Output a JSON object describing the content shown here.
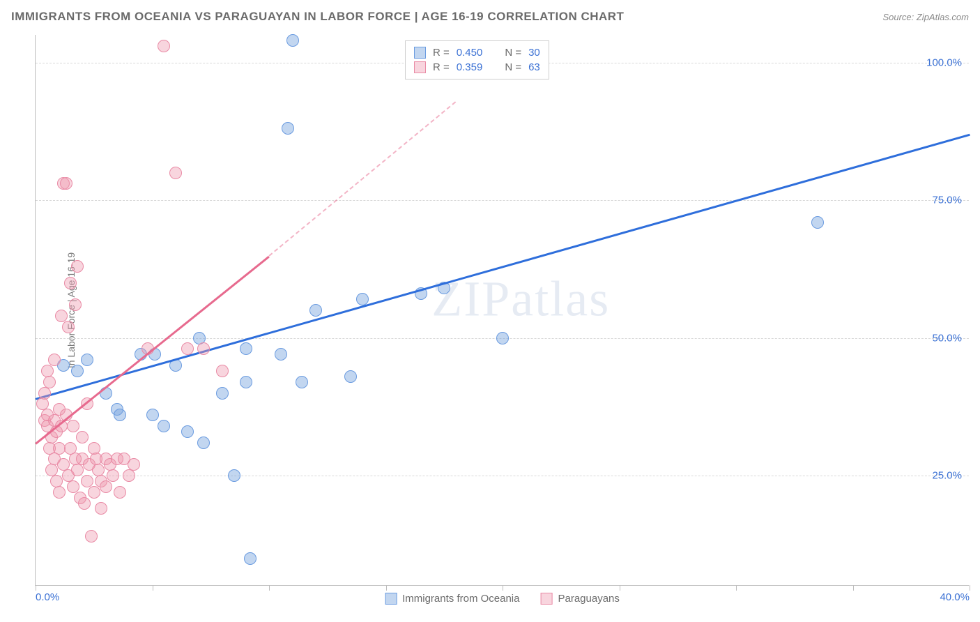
{
  "header": {
    "title": "IMMIGRANTS FROM OCEANIA VS PARAGUAYAN IN LABOR FORCE | AGE 16-19 CORRELATION CHART",
    "source_prefix": "Source: ",
    "source_name": "ZipAtlas.com"
  },
  "watermark": "ZIPatlas",
  "chart": {
    "type": "scatter",
    "y_axis_label": "In Labor Force | Age 16-19",
    "xlim": [
      0,
      40
    ],
    "ylim": [
      5,
      105
    ],
    "x_ticks": [
      0,
      5,
      10,
      15,
      20,
      25,
      30,
      35,
      40
    ],
    "x_tick_labels": {
      "0": "0.0%",
      "40": "40.0%"
    },
    "y_ticks": [
      25,
      50,
      75,
      100
    ],
    "y_tick_labels": {
      "25": "25.0%",
      "50": "50.0%",
      "75": "75.0%",
      "100": "100.0%"
    },
    "grid_color": "#d8d8d8",
    "axis_color": "#bdbdbd",
    "background_color": "#ffffff",
    "series": [
      {
        "name": "Immigrants from Oceania",
        "color_fill": "rgba(119,163,221,0.45)",
        "color_stroke": "#6a9be0",
        "marker_size": 18,
        "R": "0.450",
        "N": "30",
        "trend": {
          "x1": 0,
          "y1": 39,
          "x2": 40,
          "y2": 87,
          "color": "#2e6edb"
        },
        "points": [
          [
            1.2,
            45
          ],
          [
            1.8,
            44
          ],
          [
            2.2,
            46
          ],
          [
            3.0,
            40
          ],
          [
            3.5,
            37
          ],
          [
            3.6,
            36
          ],
          [
            4.5,
            47
          ],
          [
            5.0,
            36
          ],
          [
            5.1,
            47
          ],
          [
            5.5,
            34
          ],
          [
            6.0,
            45
          ],
          [
            6.5,
            33
          ],
          [
            7.0,
            50
          ],
          [
            7.2,
            31
          ],
          [
            8.0,
            40
          ],
          [
            8.5,
            25
          ],
          [
            9.0,
            48
          ],
          [
            9.0,
            42
          ],
          [
            9.2,
            10
          ],
          [
            10.5,
            47
          ],
          [
            10.8,
            88
          ],
          [
            11.0,
            104
          ],
          [
            11.4,
            42
          ],
          [
            12.0,
            55
          ],
          [
            13.5,
            43
          ],
          [
            14.0,
            57
          ],
          [
            16.5,
            58
          ],
          [
            17.5,
            59
          ],
          [
            20.0,
            50
          ],
          [
            33.5,
            71
          ]
        ]
      },
      {
        "name": "Paraguayans",
        "color_fill": "rgba(238,149,172,0.40)",
        "color_stroke": "#e98aa5",
        "marker_size": 18,
        "R": "0.359",
        "N": "63",
        "trend": {
          "x1": 0,
          "y1": 31,
          "x2": 10,
          "y2": 65,
          "color": "#e76a8e",
          "dash_to_x": 18,
          "dash_to_y": 93
        },
        "points": [
          [
            0.3,
            38
          ],
          [
            0.4,
            35
          ],
          [
            0.4,
            40
          ],
          [
            0.5,
            36
          ],
          [
            0.5,
            34
          ],
          [
            0.5,
            44
          ],
          [
            0.6,
            30
          ],
          [
            0.6,
            42
          ],
          [
            0.7,
            32
          ],
          [
            0.7,
            26
          ],
          [
            0.8,
            35
          ],
          [
            0.8,
            28
          ],
          [
            0.8,
            46
          ],
          [
            0.9,
            33
          ],
          [
            0.9,
            24
          ],
          [
            1.0,
            37
          ],
          [
            1.0,
            30
          ],
          [
            1.0,
            22
          ],
          [
            1.1,
            34
          ],
          [
            1.1,
            54
          ],
          [
            1.2,
            27
          ],
          [
            1.2,
            78
          ],
          [
            1.3,
            36
          ],
          [
            1.3,
            78
          ],
          [
            1.4,
            25
          ],
          [
            1.4,
            52
          ],
          [
            1.5,
            30
          ],
          [
            1.5,
            60
          ],
          [
            1.6,
            23
          ],
          [
            1.6,
            34
          ],
          [
            1.7,
            28
          ],
          [
            1.7,
            56
          ],
          [
            1.8,
            63
          ],
          [
            1.8,
            26
          ],
          [
            1.9,
            21
          ],
          [
            2.0,
            28
          ],
          [
            2.0,
            32
          ],
          [
            2.1,
            20
          ],
          [
            2.2,
            24
          ],
          [
            2.2,
            38
          ],
          [
            2.3,
            27
          ],
          [
            2.4,
            14
          ],
          [
            2.5,
            30
          ],
          [
            2.5,
            22
          ],
          [
            2.6,
            28
          ],
          [
            2.7,
            26
          ],
          [
            2.8,
            24
          ],
          [
            2.8,
            19
          ],
          [
            3.0,
            28
          ],
          [
            3.0,
            23
          ],
          [
            3.2,
            27
          ],
          [
            3.3,
            25
          ],
          [
            3.5,
            28
          ],
          [
            3.6,
            22
          ],
          [
            3.8,
            28
          ],
          [
            4.0,
            25
          ],
          [
            4.2,
            27
          ],
          [
            4.8,
            48
          ],
          [
            5.5,
            103
          ],
          [
            6.0,
            80
          ],
          [
            6.5,
            48
          ],
          [
            7.2,
            48
          ],
          [
            8.0,
            44
          ]
        ]
      }
    ],
    "correlation_legend": {
      "rows": [
        {
          "swatch": "blue",
          "r_label": "R =",
          "r_value": "0.450",
          "n_label": "N =",
          "n_value": "30"
        },
        {
          "swatch": "pink",
          "r_label": "R =",
          "r_value": "0.359",
          "n_label": "N =",
          "n_value": "63"
        }
      ]
    },
    "bottom_legend": [
      {
        "swatch": "blue",
        "label": "Immigrants from Oceania"
      },
      {
        "swatch": "pink",
        "label": "Paraguayans"
      }
    ]
  }
}
